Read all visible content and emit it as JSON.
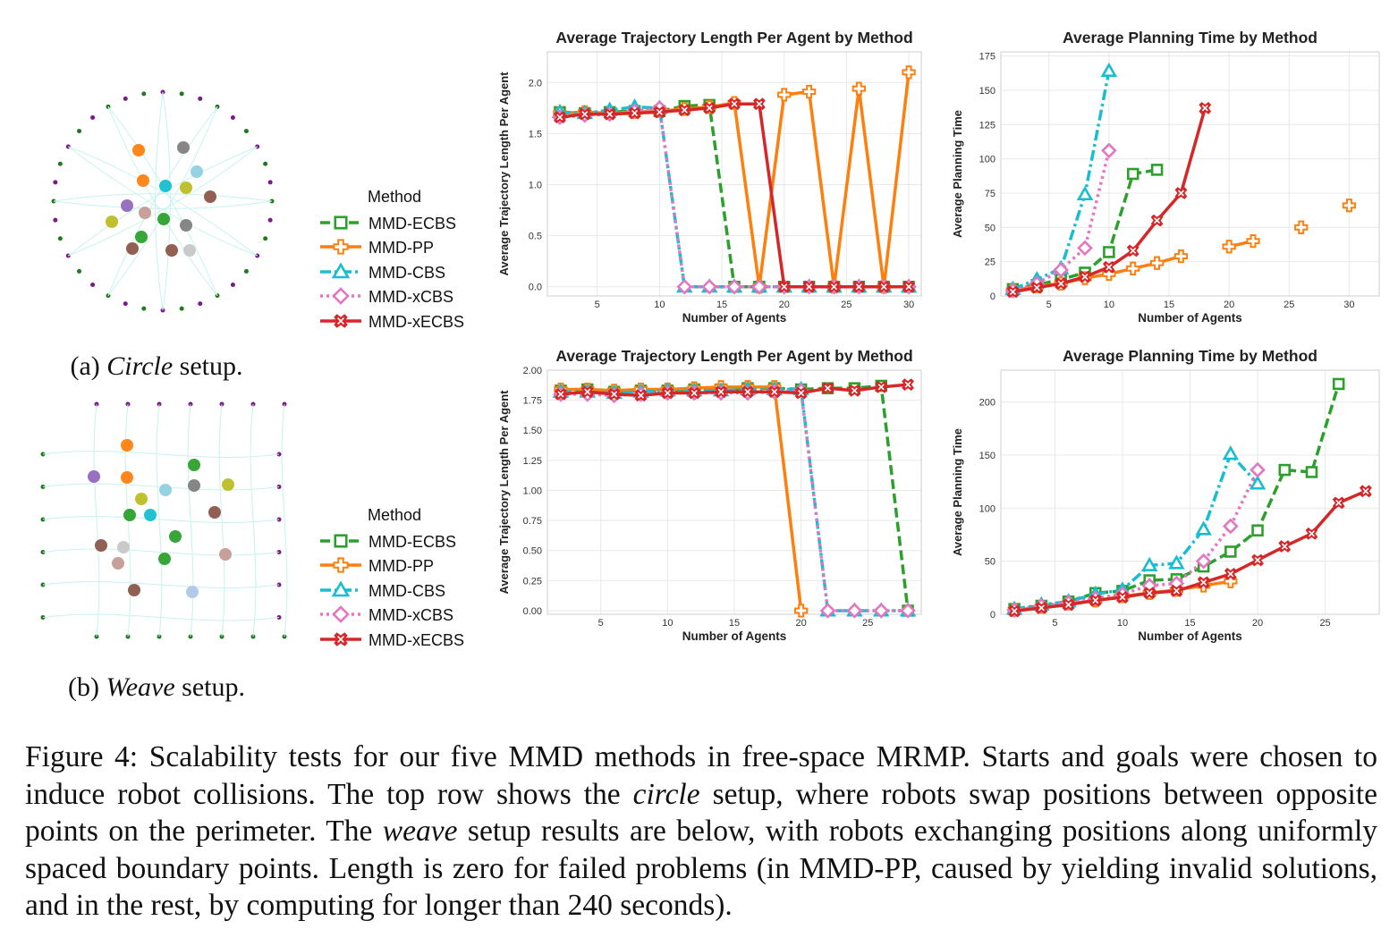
{
  "setups": [
    {
      "id": "circle",
      "label_prefix": "(a) ",
      "label_name": "Circle",
      "label_suffix": " setup."
    },
    {
      "id": "weave",
      "label_prefix": "(b) ",
      "label_name": "Weave",
      "label_suffix": " setup."
    }
  ],
  "legend": {
    "title": "Method",
    "items": [
      {
        "name": "MMD-ECBS",
        "color": "#2ca02c",
        "marker": "square",
        "dash": "dashed"
      },
      {
        "name": "MMD-PP",
        "color": "#ff7f0e",
        "marker": "plus",
        "dash": "solid"
      },
      {
        "name": "MMD-CBS",
        "color": "#17becf",
        "marker": "triangle",
        "dash": "dashdot"
      },
      {
        "name": "MMD-xCBS",
        "color": "#e377c2",
        "marker": "diamond",
        "dash": "dotted"
      },
      {
        "name": "MMD-xECBS",
        "color": "#d62728",
        "marker": "x",
        "dash": "solid"
      }
    ]
  },
  "chart_data": [
    {
      "type": "line",
      "title": "Average Trajectory Length Per Agent by Method",
      "xlabel": "Number of Agents",
      "ylabel": "Average Trajectory Length Per Agent",
      "xlim": [
        1,
        31
      ],
      "ylim": [
        -0.09,
        2.3
      ],
      "xticks": [
        5,
        10,
        15,
        20,
        25,
        30
      ],
      "yticks": [
        0.0,
        0.5,
        1.0,
        1.5,
        2.0
      ],
      "ytick_labels": [
        "0.0",
        "0.5",
        "1.0",
        "1.5",
        "2.0"
      ],
      "grid": true,
      "series": [
        {
          "name": "MMD-ECBS",
          "x": [
            2,
            4,
            6,
            8,
            10,
            12,
            14,
            16,
            18,
            20,
            22,
            24,
            26,
            28,
            30
          ],
          "y": [
            1.71,
            1.7,
            1.71,
            1.72,
            1.72,
            1.77,
            1.78,
            0.0,
            0.0,
            0.0,
            0.0,
            0.0,
            0.0,
            0.0,
            0.0
          ]
        },
        {
          "name": "MMD-PP",
          "x": [
            2,
            4,
            6,
            8,
            10,
            12,
            14,
            16,
            18,
            20,
            22,
            24,
            26,
            28,
            30
          ],
          "y": [
            1.7,
            1.71,
            1.7,
            1.71,
            1.72,
            1.74,
            1.76,
            1.8,
            0.0,
            1.88,
            1.91,
            0.0,
            1.94,
            0.0,
            2.1
          ]
        },
        {
          "name": "MMD-CBS",
          "x": [
            2,
            4,
            6,
            8,
            10,
            12,
            14,
            16,
            18,
            20,
            22,
            24,
            26,
            28,
            30
          ],
          "y": [
            1.71,
            1.7,
            1.73,
            1.76,
            1.75,
            0.0,
            0.0,
            0.0,
            0.0,
            0.0,
            0.0,
            0.0,
            0.0,
            0.0,
            0.0
          ]
        },
        {
          "name": "MMD-xCBS",
          "x": [
            2,
            4,
            6,
            8,
            10,
            12,
            14,
            16,
            18,
            20,
            22,
            24,
            26,
            28,
            30
          ],
          "y": [
            1.66,
            1.68,
            1.69,
            1.72,
            1.75,
            0.0,
            0.0,
            0.0,
            0.0,
            0.0,
            0.0,
            0.0,
            0.0,
            0.0,
            0.0
          ]
        },
        {
          "name": "MMD-xECBS",
          "x": [
            2,
            4,
            6,
            8,
            10,
            12,
            14,
            16,
            18,
            20,
            22,
            24,
            26,
            28,
            30
          ],
          "y": [
            1.66,
            1.69,
            1.69,
            1.7,
            1.71,
            1.73,
            1.75,
            1.79,
            1.79,
            0.0,
            0.0,
            0.0,
            0.0,
            0.0,
            0.0
          ]
        }
      ]
    },
    {
      "type": "line",
      "title": "Average Planning Time by Method",
      "xlabel": "Number of Agents",
      "ylabel": "Average Planning Time",
      "xlim": [
        1,
        32.5
      ],
      "ylim": [
        0,
        178
      ],
      "xticks": [
        5,
        10,
        15,
        20,
        25,
        30
      ],
      "yticks": [
        0,
        25,
        50,
        75,
        100,
        125,
        150,
        175
      ],
      "ytick_labels": [
        "0",
        "25",
        "50",
        "75",
        "100",
        "125",
        "150",
        "175"
      ],
      "grid": true,
      "series": [
        {
          "name": "MMD-ECBS",
          "x": [
            2,
            4,
            6,
            8,
            10,
            12,
            14
          ],
          "y": [
            5,
            8,
            12,
            17,
            32,
            89,
            92
          ]
        },
        {
          "name": "MMD-PP",
          "x": [
            2,
            4,
            6,
            8,
            10,
            12,
            14,
            16,
            null,
            20,
            22,
            null,
            26,
            null,
            30
          ],
          "y": [
            4,
            7,
            9,
            13,
            16,
            20,
            24,
            29,
            null,
            36,
            40,
            null,
            50,
            null,
            66
          ]
        },
        {
          "name": "MMD-CBS",
          "x": [
            2,
            4,
            6,
            8,
            10
          ],
          "y": [
            5,
            12,
            20,
            74,
            164
          ]
        },
        {
          "name": "MMD-xCBS",
          "x": [
            2,
            4,
            6,
            8,
            10
          ],
          "y": [
            4,
            9,
            19,
            35,
            106
          ]
        },
        {
          "name": "MMD-xECBS",
          "x": [
            2,
            4,
            6,
            8,
            10,
            12,
            14,
            16,
            18
          ],
          "y": [
            3,
            6,
            9,
            14,
            21,
            33,
            55,
            75,
            137
          ]
        }
      ]
    },
    {
      "type": "line",
      "title": "Average Trajectory Length Per Agent by Method",
      "xlabel": "Number of Agents",
      "ylabel": "Average Trajectory Length Per Agent",
      "xlim": [
        1,
        29
      ],
      "ylim": [
        -0.03,
        2.0
      ],
      "xticks": [
        5,
        10,
        15,
        20,
        25
      ],
      "yticks": [
        0.0,
        0.25,
        0.5,
        0.75,
        1.0,
        1.25,
        1.5,
        1.75,
        2.0
      ],
      "ytick_labels": [
        "0.00",
        "0.25",
        "0.50",
        "0.75",
        "1.00",
        "1.25",
        "1.50",
        "1.75",
        "2.00"
      ],
      "grid": true,
      "series": [
        {
          "name": "MMD-ECBS",
          "x": [
            2,
            4,
            6,
            8,
            10,
            12,
            14,
            16,
            18,
            20,
            22,
            24,
            26,
            28
          ],
          "y": [
            1.83,
            1.84,
            1.82,
            1.83,
            1.83,
            1.84,
            1.84,
            1.85,
            1.85,
            1.84,
            1.85,
            1.85,
            1.87,
            0.0
          ]
        },
        {
          "name": "MMD-PP",
          "x": [
            2,
            4,
            6,
            8,
            10,
            12,
            14,
            16,
            18,
            20
          ],
          "y": [
            1.84,
            1.84,
            1.83,
            1.84,
            1.84,
            1.85,
            1.86,
            1.86,
            1.86,
            0.0
          ]
        },
        {
          "name": "MMD-CBS",
          "x": [
            2,
            4,
            6,
            8,
            10,
            12,
            14,
            16,
            18,
            20,
            22,
            24,
            26,
            28
          ],
          "y": [
            1.82,
            1.82,
            1.81,
            1.82,
            1.83,
            1.83,
            1.83,
            1.84,
            1.84,
            1.84,
            0.0,
            0.0,
            0.0,
            0.0
          ]
        },
        {
          "name": "MMD-xCBS",
          "x": [
            2,
            4,
            6,
            8,
            10,
            12,
            14,
            16,
            18,
            20,
            22,
            24,
            26,
            28
          ],
          "y": [
            1.8,
            1.8,
            1.79,
            1.8,
            1.81,
            1.81,
            1.81,
            1.81,
            1.82,
            1.83,
            0.0,
            0.0,
            0.0,
            0.0
          ]
        },
        {
          "name": "MMD-xECBS",
          "x": [
            2,
            4,
            6,
            8,
            10,
            12,
            14,
            16,
            18,
            20,
            22,
            24,
            26,
            28
          ],
          "y": [
            1.8,
            1.82,
            1.8,
            1.79,
            1.81,
            1.81,
            1.82,
            1.82,
            1.82,
            1.81,
            1.85,
            1.83,
            1.86,
            1.88
          ]
        }
      ]
    },
    {
      "type": "line",
      "title": "Average Planning Time by Method",
      "xlabel": "Number of Agents",
      "ylabel": "Average Planning Time",
      "xlim": [
        1,
        29
      ],
      "ylim": [
        0,
        230
      ],
      "xticks": [
        5,
        10,
        15,
        20,
        25
      ],
      "yticks": [
        0,
        50,
        100,
        150,
        200
      ],
      "ytick_labels": [
        "0",
        "50",
        "100",
        "150",
        "200"
      ],
      "grid": true,
      "series": [
        {
          "name": "MMD-ECBS",
          "x": [
            2,
            4,
            6,
            8,
            10,
            12,
            14,
            16,
            18,
            20,
            22,
            24,
            26
          ],
          "y": [
            5,
            8,
            12,
            20,
            22,
            32,
            33,
            45,
            59,
            79,
            136,
            134,
            217
          ]
        },
        {
          "name": "MMD-PP",
          "x": [
            2,
            4,
            6,
            8,
            10,
            12,
            14,
            16,
            18
          ],
          "y": [
            4,
            7,
            10,
            13,
            17,
            20,
            23,
            27,
            31
          ]
        },
        {
          "name": "MMD-CBS",
          "x": [
            2,
            4,
            6,
            8,
            10,
            12,
            14,
            16,
            18,
            20
          ],
          "y": [
            5,
            9,
            12,
            19,
            23,
            46,
            48,
            80,
            151,
            123
          ]
        },
        {
          "name": "MMD-xCBS",
          "x": [
            2,
            4,
            6,
            8,
            10,
            12,
            14,
            16,
            18,
            20
          ],
          "y": [
            4,
            8,
            11,
            15,
            19,
            27,
            29,
            50,
            83,
            136
          ]
        },
        {
          "name": "MMD-xECBS",
          "x": [
            2,
            4,
            6,
            8,
            10,
            12,
            14,
            16,
            18,
            20,
            22,
            24,
            26,
            28
          ],
          "y": [
            3,
            6,
            9,
            13,
            16,
            20,
            22,
            30,
            38,
            51,
            64,
            76,
            105,
            116
          ]
        }
      ]
    }
  ],
  "caption": {
    "lead": "Figure 4:  Scalability tests for our five MMD methods in free-space MRMP. Starts and goals were chosen to induce robot collisions. The top row shows the ",
    "em1": "circle",
    "mid1": " setup, where robots swap positions between opposite points on the perimeter. The ",
    "em2": "weave",
    "rest": " setup results are below, with robots exchanging positions along uniformly spaced boundary points. Length is zero for failed problems (in MMD-PP, caused by yielding invalid solutions, and in the rest, by computing for longer than 240 seconds)."
  }
}
